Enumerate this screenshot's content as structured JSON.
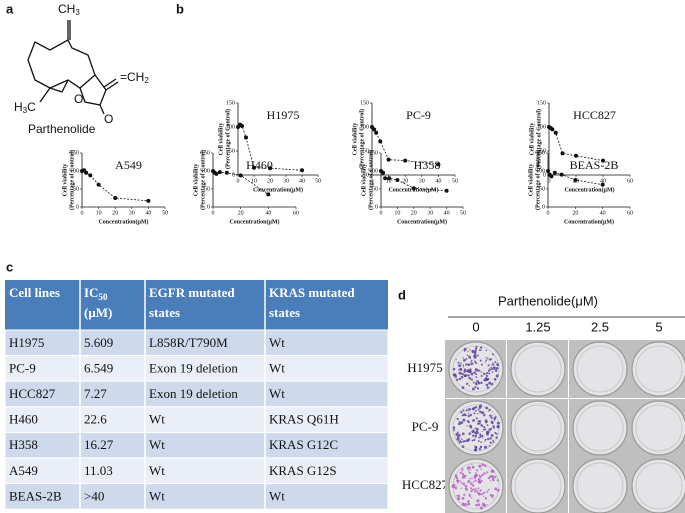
{
  "panels": {
    "a": "a",
    "b": "b",
    "c": "c",
    "d": "d"
  },
  "structure": {
    "top": {
      "text": "CH",
      "sub": "3"
    },
    "left": {
      "text": "H",
      "sub": "3",
      "tail": "C"
    },
    "right": {
      "text": "=CH",
      "sub": "2"
    },
    "o1": "O",
    "o2": "O",
    "name": "Parthenolide"
  },
  "chart_data": [
    {
      "type": "line",
      "title": "H1975",
      "xlabel": "Concentration(μM)",
      "ylabel": [
        "Cell viability",
        "(Percentage of Control)"
      ],
      "x": [
        0,
        1.25,
        2.5,
        5,
        10,
        20,
        40
      ],
      "values": [
        100,
        105,
        102,
        78,
        15,
        14,
        10
      ],
      "color": "#111111",
      "xlim": [
        0,
        50
      ],
      "xticks": [
        0,
        10,
        20,
        30,
        40,
        50
      ],
      "ylim": [
        0,
        150
      ],
      "yticks": [
        0,
        50,
        100,
        150
      ]
    },
    {
      "type": "line",
      "title": "PC-9",
      "xlabel": "Concentration(μM)",
      "ylabel": [
        "Cell viability",
        "(Percentage of Control)"
      ],
      "x": [
        0,
        1.25,
        2.5,
        5,
        10,
        20,
        40
      ],
      "values": [
        100,
        95,
        88,
        70,
        32,
        30,
        22
      ],
      "color": "#111111",
      "xlim": [
        0,
        50
      ],
      "xticks": [
        0,
        10,
        20,
        30,
        40,
        50
      ],
      "ylim": [
        0,
        150
      ],
      "yticks": [
        0,
        50,
        100,
        150
      ]
    },
    {
      "type": "line",
      "title": "HCC827",
      "xlabel": "Concentration(μM)",
      "ylabel": [
        "Cell viability",
        "(Percentage of Control)"
      ],
      "x": [
        0,
        1.25,
        2.5,
        5,
        10,
        20,
        40
      ],
      "values": [
        100,
        98,
        95,
        88,
        45,
        40,
        30
      ],
      "color": "#111111",
      "xlim": [
        0,
        60
      ],
      "xticks": [
        0,
        20,
        40,
        60
      ],
      "ylim": [
        0,
        150
      ],
      "yticks": [
        0,
        50,
        100,
        150
      ]
    },
    {
      "type": "line",
      "title": "A549",
      "xlabel": "Concentration(μM)",
      "ylabel": [
        "Cell viability",
        "(Percentage of Control)"
      ],
      "x": [
        0,
        1.25,
        2.5,
        5,
        10,
        20,
        40
      ],
      "values": [
        100,
        102,
        95,
        88,
        62,
        25,
        17
      ],
      "color": "#111111",
      "xlim": [
        0,
        50
      ],
      "xticks": [
        0,
        10,
        20,
        30,
        40,
        50
      ],
      "ylim": [
        0,
        150
      ],
      "yticks": [
        0,
        50,
        100,
        150
      ]
    },
    {
      "type": "line",
      "title": "H460",
      "xlabel": "Concentration(μM)",
      "ylabel": [
        "Cell viability",
        "(Percentage of Control)"
      ],
      "x": [
        0,
        1.25,
        2.5,
        5,
        10,
        20,
        40
      ],
      "values": [
        100,
        95,
        92,
        97,
        95,
        88,
        35
      ],
      "color": "#111111",
      "xlim": [
        0,
        60
      ],
      "xticks": [
        0,
        20,
        40,
        60
      ],
      "ylim": [
        0,
        150
      ],
      "yticks": [
        0,
        50,
        100,
        150
      ]
    },
    {
      "type": "line",
      "title": "H358",
      "xlabel": "Concentration(μM)",
      "ylabel": [
        "Cell viability",
        "(Percentage of Control)"
      ],
      "x": [
        0,
        1.25,
        2.5,
        5,
        10,
        20,
        40
      ],
      "values": [
        100,
        95,
        80,
        80,
        75,
        52,
        45
      ],
      "color": "#111111",
      "xlim": [
        0,
        50
      ],
      "xticks": [
        0,
        10,
        20,
        30,
        40,
        50
      ],
      "ylim": [
        0,
        150
      ],
      "yticks": [
        0,
        50,
        100,
        150
      ]
    },
    {
      "type": "line",
      "title": "BEAS-2B",
      "xlabel": "Concentration(μM)",
      "ylabel": [
        "Cell viability",
        "(Percentage of Control)"
      ],
      "x": [
        0,
        1.25,
        2.5,
        5,
        10,
        20,
        40
      ],
      "values": [
        100,
        90,
        85,
        95,
        90,
        75,
        62
      ],
      "color": "#111111",
      "xlim": [
        0,
        60
      ],
      "xticks": [
        0,
        20,
        40,
        60
      ],
      "ylim": [
        0,
        150
      ],
      "yticks": [
        0,
        50,
        100,
        150
      ]
    }
  ],
  "table": {
    "header": [
      "Cell lines",
      {
        "main": "IC",
        "sub": "50",
        "unit": "(μM)"
      },
      [
        "EGFR mutated",
        "states"
      ],
      [
        "KRAS mutated",
        "states"
      ]
    ],
    "rows": [
      [
        "H1975",
        "5.609",
        "L858R/T790M",
        "Wt"
      ],
      [
        "PC-9",
        "6.549",
        "Exon 19 deletion",
        "Wt"
      ],
      [
        "HCC827",
        "7.27",
        "Exon 19 deletion",
        "Wt"
      ],
      [
        "H460",
        "22.6",
        "Wt",
        "KRAS Q61H"
      ],
      [
        "H358",
        "16.27",
        "Wt",
        "KRAS G12C"
      ],
      [
        "A549",
        "11.03",
        "Wt",
        "KRAS G12S"
      ],
      [
        "BEAS-2B",
        ">40",
        "Wt",
        "Wt"
      ]
    ]
  },
  "colony": {
    "title": "Parthenolide(μM)",
    "columns": [
      "0",
      "1.25",
      "2.5",
      "5"
    ],
    "rows": [
      "H1975",
      "PC-9",
      "HCC827"
    ]
  }
}
